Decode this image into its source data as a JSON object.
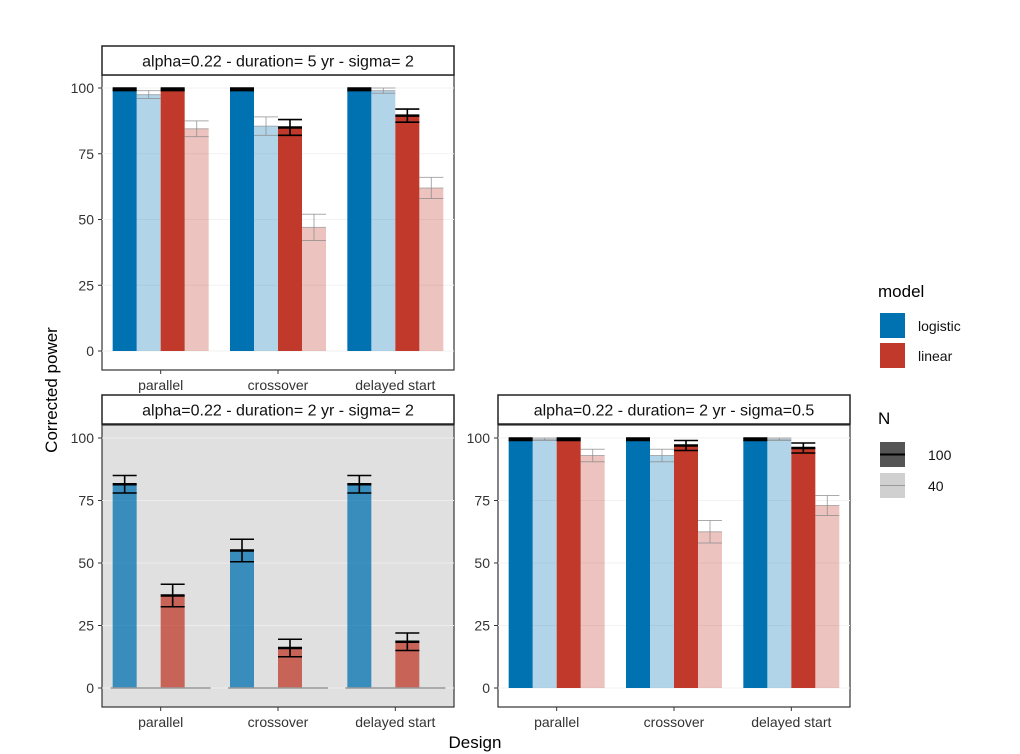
{
  "colors": {
    "logistic": "#0072b2",
    "linear": "#c0392b",
    "panel_bg_normal": "#ffffff",
    "panel_bg_highlight": "#e0e0e0",
    "errorbar_100": "#000000",
    "errorbar_40": "#888888"
  },
  "chart_data": {
    "type": "bar",
    "xlabel": "Design",
    "ylabel": "Corrected power",
    "ylim": [
      0,
      100
    ],
    "yticks": [
      0,
      25,
      50,
      75,
      100
    ],
    "categories": [
      "parallel",
      "crossover",
      "delayed start"
    ],
    "legend": {
      "model_title": "model",
      "model_items": [
        {
          "key": "logistic",
          "label": "logistic"
        },
        {
          "key": "linear",
          "label": "linear"
        }
      ],
      "n_title": "N",
      "n_items": [
        {
          "key": "100",
          "label": "100"
        },
        {
          "key": "40",
          "label": "40"
        }
      ]
    },
    "panels": [
      {
        "id": "p1",
        "strip": "alpha=0.22 - duration=  5 yr - sigma= 2",
        "highlight": false,
        "bars": {
          "parallel": [
            {
              "model": "logistic",
              "n": 100,
              "value": 99.5,
              "err": 0.5
            },
            {
              "model": "logistic",
              "n": 40,
              "value": 97.5,
              "err": 1.5
            },
            {
              "model": "linear",
              "n": 100,
              "value": 99.5,
              "err": 0.5
            },
            {
              "model": "linear",
              "n": 40,
              "value": 84.5,
              "err": 3
            }
          ],
          "crossover": [
            {
              "model": "logistic",
              "n": 100,
              "value": 99.5,
              "err": 0.5
            },
            {
              "model": "logistic",
              "n": 40,
              "value": 85.5,
              "err": 3.5
            },
            {
              "model": "linear",
              "n": 100,
              "value": 85,
              "err": 3
            },
            {
              "model": "linear",
              "n": 40,
              "value": 47,
              "err": 5
            }
          ],
          "delayed start": [
            {
              "model": "logistic",
              "n": 100,
              "value": 99.5,
              "err": 0.5
            },
            {
              "model": "logistic",
              "n": 40,
              "value": 99,
              "err": 1
            },
            {
              "model": "linear",
              "n": 100,
              "value": 89.5,
              "err": 2.5
            },
            {
              "model": "linear",
              "n": 40,
              "value": 62,
              "err": 4
            }
          ]
        }
      },
      {
        "id": "p2",
        "strip": "alpha=0.22 - duration=  2 yr - sigma= 2",
        "highlight": true,
        "bars": {
          "parallel": [
            {
              "model": "logistic",
              "n": 100,
              "value": 81.5,
              "err": 3.5
            },
            {
              "model": "logistic",
              "n": 40,
              "value": 0,
              "err": 0
            },
            {
              "model": "linear",
              "n": 100,
              "value": 37,
              "err": 4.5
            },
            {
              "model": "linear",
              "n": 40,
              "value": 0,
              "err": 0
            }
          ],
          "crossover": [
            {
              "model": "logistic",
              "n": 100,
              "value": 55,
              "err": 4.5
            },
            {
              "model": "logistic",
              "n": 40,
              "value": 0,
              "err": 0
            },
            {
              "model": "linear",
              "n": 100,
              "value": 16,
              "err": 3.5
            },
            {
              "model": "linear",
              "n": 40,
              "value": 0,
              "err": 0
            }
          ],
          "delayed start": [
            {
              "model": "logistic",
              "n": 100,
              "value": 81.5,
              "err": 3.5
            },
            {
              "model": "logistic",
              "n": 40,
              "value": 0,
              "err": 0
            },
            {
              "model": "linear",
              "n": 100,
              "value": 18.5,
              "err": 3.5
            },
            {
              "model": "linear",
              "n": 40,
              "value": 0,
              "err": 0
            }
          ]
        }
      },
      {
        "id": "p3",
        "strip": "alpha=0.22 - duration=  2 yr - sigma=0.5",
        "highlight": false,
        "bars": {
          "parallel": [
            {
              "model": "logistic",
              "n": 100,
              "value": 99.5,
              "err": 0.5
            },
            {
              "model": "logistic",
              "n": 40,
              "value": 99.5,
              "err": 0.5
            },
            {
              "model": "linear",
              "n": 100,
              "value": 99.5,
              "err": 0.5
            },
            {
              "model": "linear",
              "n": 40,
              "value": 93,
              "err": 2.5
            }
          ],
          "crossover": [
            {
              "model": "logistic",
              "n": 100,
              "value": 99.5,
              "err": 0.5
            },
            {
              "model": "logistic",
              "n": 40,
              "value": 93,
              "err": 2.5
            },
            {
              "model": "linear",
              "n": 100,
              "value": 97,
              "err": 2
            },
            {
              "model": "linear",
              "n": 40,
              "value": 62.5,
              "err": 4.5
            }
          ],
          "delayed start": [
            {
              "model": "logistic",
              "n": 100,
              "value": 99.5,
              "err": 0.5
            },
            {
              "model": "logistic",
              "n": 40,
              "value": 99.5,
              "err": 0.5
            },
            {
              "model": "linear",
              "n": 100,
              "value": 96,
              "err": 2
            },
            {
              "model": "linear",
              "n": 40,
              "value": 73,
              "err": 4
            }
          ]
        }
      }
    ]
  }
}
